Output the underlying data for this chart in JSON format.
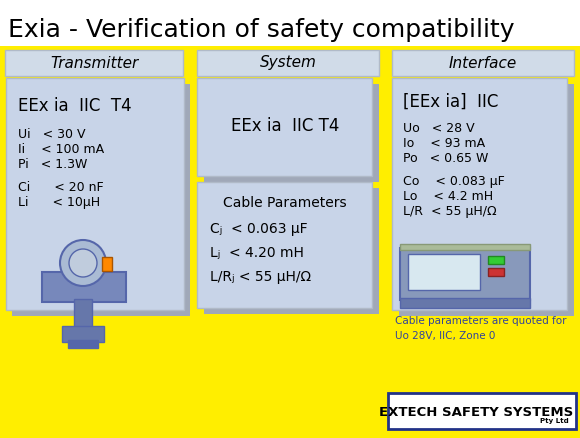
{
  "title": "Exia - Verification of safety compatibility",
  "bg_color": "#FFEE00",
  "panel_color": "#C8D4E8",
  "shadow_color": "#A0A8B8",
  "title_fontsize": 18,
  "transmitter_label": "Transmitter",
  "interface_label": "Interface",
  "system_label": "System",
  "cable_label": "Cable Parameters",
  "tx_title": "EEx ia  IIC  T4",
  "sys_title": "EEx ia  IIC T4",
  "ifc_title": "[EEx ia]  IIC",
  "footer_note": "Cable parameters are quoted for\nUo 28V, IIC, Zone 0",
  "footer_brand": "EXTECH SAFETY SYSTEMS",
  "footer_brand_small": "Pty Ltd",
  "tx_lines": [
    [
      "Ui   < 30 V",
      128
    ],
    [
      "Ii    < 100 mA",
      143
    ],
    [
      "Pi   < 1.3W",
      158
    ],
    [
      "Ci      < 20 nF",
      181
    ],
    [
      "Li      < 10μH",
      196
    ]
  ],
  "cable_lines": [
    [
      "Cⱼ  < 0.063 μF",
      222
    ],
    [
      "Lⱼ  < 4.20 mH",
      246
    ],
    [
      "L/Rⱼ < 55 μH/Ω",
      270
    ]
  ],
  "ifc_lines": [
    [
      "Uo   < 28 V",
      122
    ],
    [
      "Io    < 93 mA",
      137
    ],
    [
      "Po   < 0.65 W",
      152
    ],
    [
      "Co    < 0.083 μF",
      175
    ],
    [
      "Lo    < 4.2 mH",
      190
    ],
    [
      "L/R  < 55 μH/Ω",
      205
    ]
  ]
}
